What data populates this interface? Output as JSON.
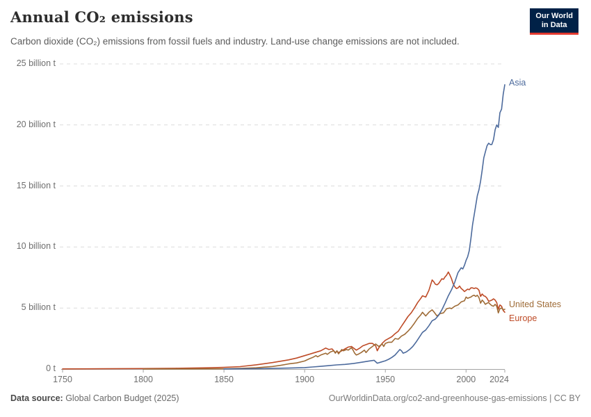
{
  "header": {
    "title": "Annual CO₂ emissions",
    "subtitle": "Carbon dioxide (CO₂) emissions from fossil fuels and industry. Land-use change emissions are not included.",
    "logo": {
      "line1": "Our World",
      "line2": "in Data",
      "bg_color": "#002147",
      "accent_color": "#E2392F"
    }
  },
  "footer": {
    "source_label": "Data source:",
    "source_value": " Global Carbon Budget (2025)",
    "credit": "OurWorldinData.org/co2-and-greenhouse-gas-emissions | CC BY"
  },
  "chart_data": {
    "type": "line",
    "title": "Annual CO₂ emissions",
    "xlabel": "",
    "ylabel": "",
    "x_range": [
      1750,
      2024
    ],
    "y_range": [
      0,
      25
    ],
    "grid": "horizontal-dashed",
    "grid_color": "#dcdcdc",
    "axis_color": "#a3a3a3",
    "legend_position": "line-end-labels-right",
    "y_ticks": [
      {
        "value": 0,
        "label": "0 t"
      },
      {
        "value": 5,
        "label": "5 billion t"
      },
      {
        "value": 10,
        "label": "10 billion t"
      },
      {
        "value": 15,
        "label": "15 billion t"
      },
      {
        "value": 20,
        "label": "20 billion t"
      },
      {
        "value": 25,
        "label": "25 billion t"
      }
    ],
    "x_ticks": [
      {
        "year": 1750,
        "label": "1750",
        "dx": 0
      },
      {
        "year": 1800,
        "label": "1800",
        "dx": 0
      },
      {
        "year": 1850,
        "label": "1850",
        "dx": 0
      },
      {
        "year": 1900,
        "label": "1900",
        "dx": 0
      },
      {
        "year": 1950,
        "label": "1950",
        "dx": 0
      },
      {
        "year": 2000,
        "label": "2000",
        "dx": 0
      },
      {
        "year": 2024,
        "label": "2024",
        "dx": -8
      }
    ],
    "series": [
      {
        "name": "Asia",
        "color": "#4C6A9C",
        "label_dy": -10,
        "points": [
          [
            1850,
            0.01
          ],
          [
            1870,
            0.03
          ],
          [
            1880,
            0.05
          ],
          [
            1890,
            0.08
          ],
          [
            1900,
            0.12
          ],
          [
            1905,
            0.17
          ],
          [
            1910,
            0.22
          ],
          [
            1915,
            0.28
          ],
          [
            1920,
            0.34
          ],
          [
            1925,
            0.38
          ],
          [
            1930,
            0.45
          ],
          [
            1935,
            0.55
          ],
          [
            1940,
            0.66
          ],
          [
            1943,
            0.72
          ],
          [
            1945,
            0.48
          ],
          [
            1947,
            0.56
          ],
          [
            1950,
            0.68
          ],
          [
            1952,
            0.8
          ],
          [
            1954,
            0.95
          ],
          [
            1956,
            1.15
          ],
          [
            1958,
            1.45
          ],
          [
            1959,
            1.6
          ],
          [
            1960,
            1.5
          ],
          [
            1961,
            1.3
          ],
          [
            1963,
            1.4
          ],
          [
            1965,
            1.6
          ],
          [
            1967,
            1.85
          ],
          [
            1969,
            2.2
          ],
          [
            1971,
            2.6
          ],
          [
            1973,
            3.0
          ],
          [
            1975,
            3.2
          ],
          [
            1977,
            3.55
          ],
          [
            1979,
            3.95
          ],
          [
            1981,
            4.1
          ],
          [
            1983,
            4.4
          ],
          [
            1985,
            4.85
          ],
          [
            1987,
            5.4
          ],
          [
            1989,
            6.0
          ],
          [
            1991,
            6.5
          ],
          [
            1993,
            7.1
          ],
          [
            1995,
            7.9
          ],
          [
            1997,
            8.3
          ],
          [
            1998,
            8.2
          ],
          [
            1999,
            8.5
          ],
          [
            2000,
            8.9
          ],
          [
            2001,
            9.2
          ],
          [
            2002,
            9.7
          ],
          [
            2003,
            10.7
          ],
          [
            2004,
            11.8
          ],
          [
            2005,
            12.6
          ],
          [
            2006,
            13.4
          ],
          [
            2007,
            14.2
          ],
          [
            2008,
            14.7
          ],
          [
            2009,
            15.4
          ],
          [
            2010,
            16.3
          ],
          [
            2011,
            17.3
          ],
          [
            2012,
            17.8
          ],
          [
            2013,
            18.3
          ],
          [
            2014,
            18.5
          ],
          [
            2015,
            18.4
          ],
          [
            2016,
            18.4
          ],
          [
            2017,
            18.8
          ],
          [
            2018,
            19.6
          ],
          [
            2019,
            20.0
          ],
          [
            2020,
            19.8
          ],
          [
            2021,
            21.0
          ],
          [
            2022,
            21.3
          ],
          [
            2023,
            22.5
          ],
          [
            2024,
            23.3
          ]
        ]
      },
      {
        "name": "United States",
        "color": "#9E6B36",
        "label_dy": -14,
        "points": [
          [
            1800,
            0.0
          ],
          [
            1830,
            0.01
          ],
          [
            1850,
            0.02
          ],
          [
            1860,
            0.05
          ],
          [
            1870,
            0.1
          ],
          [
            1880,
            0.21
          ],
          [
            1885,
            0.3
          ],
          [
            1890,
            0.42
          ],
          [
            1895,
            0.5
          ],
          [
            1900,
            0.66
          ],
          [
            1903,
            0.85
          ],
          [
            1905,
            0.95
          ],
          [
            1907,
            1.1
          ],
          [
            1908,
            1.0
          ],
          [
            1910,
            1.15
          ],
          [
            1913,
            1.3
          ],
          [
            1914,
            1.2
          ],
          [
            1916,
            1.4
          ],
          [
            1918,
            1.5
          ],
          [
            1919,
            1.3
          ],
          [
            1920,
            1.5
          ],
          [
            1921,
            1.25
          ],
          [
            1923,
            1.6
          ],
          [
            1924,
            1.5
          ],
          [
            1926,
            1.6
          ],
          [
            1927,
            1.55
          ],
          [
            1929,
            1.75
          ],
          [
            1930,
            1.55
          ],
          [
            1931,
            1.3
          ],
          [
            1932,
            1.15
          ],
          [
            1933,
            1.2
          ],
          [
            1935,
            1.35
          ],
          [
            1937,
            1.55
          ],
          [
            1938,
            1.35
          ],
          [
            1940,
            1.65
          ],
          [
            1942,
            1.85
          ],
          [
            1944,
            2.05
          ],
          [
            1945,
            1.95
          ],
          [
            1946,
            1.85
          ],
          [
            1948,
            2.05
          ],
          [
            1949,
            1.85
          ],
          [
            1950,
            2.1
          ],
          [
            1952,
            2.2
          ],
          [
            1954,
            2.2
          ],
          [
            1956,
            2.5
          ],
          [
            1958,
            2.45
          ],
          [
            1960,
            2.7
          ],
          [
            1962,
            2.85
          ],
          [
            1964,
            3.1
          ],
          [
            1966,
            3.4
          ],
          [
            1968,
            3.75
          ],
          [
            1970,
            4.15
          ],
          [
            1972,
            4.45
          ],
          [
            1973,
            4.65
          ],
          [
            1975,
            4.35
          ],
          [
            1977,
            4.65
          ],
          [
            1979,
            4.85
          ],
          [
            1980,
            4.7
          ],
          [
            1982,
            4.35
          ],
          [
            1984,
            4.55
          ],
          [
            1986,
            4.6
          ],
          [
            1988,
            4.95
          ],
          [
            1990,
            5.0
          ],
          [
            1991,
            4.95
          ],
          [
            1993,
            5.15
          ],
          [
            1995,
            5.25
          ],
          [
            1997,
            5.5
          ],
          [
            1999,
            5.6
          ],
          [
            2000,
            5.9
          ],
          [
            2001,
            5.8
          ],
          [
            2002,
            5.85
          ],
          [
            2003,
            5.9
          ],
          [
            2004,
            6.0
          ],
          [
            2005,
            6.05
          ],
          [
            2006,
            5.95
          ],
          [
            2007,
            6.05
          ],
          [
            2008,
            5.85
          ],
          [
            2009,
            5.4
          ],
          [
            2010,
            5.65
          ],
          [
            2011,
            5.5
          ],
          [
            2012,
            5.3
          ],
          [
            2013,
            5.4
          ],
          [
            2014,
            5.45
          ],
          [
            2015,
            5.3
          ],
          [
            2016,
            5.2
          ],
          [
            2017,
            5.15
          ],
          [
            2018,
            5.3
          ],
          [
            2019,
            5.15
          ],
          [
            2020,
            4.6
          ],
          [
            2021,
            4.95
          ],
          [
            2022,
            5.0
          ],
          [
            2023,
            4.85
          ],
          [
            2024,
            4.9
          ]
        ]
      },
      {
        "name": "Europe",
        "color": "#BE4B27",
        "label_dy": 2,
        "points": [
          [
            1750,
            0.01
          ],
          [
            1775,
            0.02
          ],
          [
            1800,
            0.04
          ],
          [
            1820,
            0.06
          ],
          [
            1840,
            0.1
          ],
          [
            1850,
            0.14
          ],
          [
            1860,
            0.2
          ],
          [
            1870,
            0.35
          ],
          [
            1880,
            0.53
          ],
          [
            1890,
            0.75
          ],
          [
            1895,
            0.9
          ],
          [
            1900,
            1.1
          ],
          [
            1905,
            1.3
          ],
          [
            1910,
            1.5
          ],
          [
            1913,
            1.72
          ],
          [
            1915,
            1.6
          ],
          [
            1917,
            1.65
          ],
          [
            1919,
            1.35
          ],
          [
            1920,
            1.45
          ],
          [
            1921,
            1.35
          ],
          [
            1923,
            1.5
          ],
          [
            1925,
            1.65
          ],
          [
            1927,
            1.8
          ],
          [
            1929,
            1.85
          ],
          [
            1930,
            1.75
          ],
          [
            1932,
            1.55
          ],
          [
            1934,
            1.7
          ],
          [
            1936,
            1.9
          ],
          [
            1938,
            2.0
          ],
          [
            1940,
            2.1
          ],
          [
            1942,
            2.1
          ],
          [
            1944,
            1.9
          ],
          [
            1945,
            1.5
          ],
          [
            1946,
            1.75
          ],
          [
            1948,
            2.1
          ],
          [
            1950,
            2.35
          ],
          [
            1952,
            2.5
          ],
          [
            1954,
            2.65
          ],
          [
            1956,
            2.9
          ],
          [
            1958,
            3.1
          ],
          [
            1960,
            3.5
          ],
          [
            1962,
            3.9
          ],
          [
            1964,
            4.3
          ],
          [
            1966,
            4.6
          ],
          [
            1968,
            5.0
          ],
          [
            1970,
            5.45
          ],
          [
            1972,
            5.8
          ],
          [
            1973,
            6.0
          ],
          [
            1975,
            5.9
          ],
          [
            1977,
            6.45
          ],
          [
            1979,
            7.3
          ],
          [
            1980,
            7.15
          ],
          [
            1981,
            6.95
          ],
          [
            1982,
            6.9
          ],
          [
            1983,
            7.0
          ],
          [
            1984,
            7.2
          ],
          [
            1985,
            7.4
          ],
          [
            1986,
            7.35
          ],
          [
            1987,
            7.55
          ],
          [
            1988,
            7.7
          ],
          [
            1989,
            7.95
          ],
          [
            1990,
            7.7
          ],
          [
            1991,
            7.4
          ],
          [
            1992,
            7.0
          ],
          [
            1993,
            6.75
          ],
          [
            1994,
            6.6
          ],
          [
            1995,
            6.65
          ],
          [
            1996,
            6.8
          ],
          [
            1997,
            6.6
          ],
          [
            1998,
            6.5
          ],
          [
            1999,
            6.35
          ],
          [
            2000,
            6.45
          ],
          [
            2001,
            6.55
          ],
          [
            2002,
            6.5
          ],
          [
            2003,
            6.65
          ],
          [
            2004,
            6.65
          ],
          [
            2005,
            6.6
          ],
          [
            2006,
            6.65
          ],
          [
            2007,
            6.6
          ],
          [
            2008,
            6.45
          ],
          [
            2009,
            5.95
          ],
          [
            2010,
            6.15
          ],
          [
            2011,
            6.0
          ],
          [
            2012,
            5.95
          ],
          [
            2013,
            5.8
          ],
          [
            2014,
            5.55
          ],
          [
            2015,
            5.6
          ],
          [
            2016,
            5.65
          ],
          [
            2017,
            5.75
          ],
          [
            2018,
            5.65
          ],
          [
            2019,
            5.45
          ],
          [
            2020,
            4.9
          ],
          [
            2021,
            5.25
          ],
          [
            2022,
            5.15
          ],
          [
            2023,
            4.8
          ],
          [
            2024,
            4.65
          ]
        ]
      }
    ]
  }
}
